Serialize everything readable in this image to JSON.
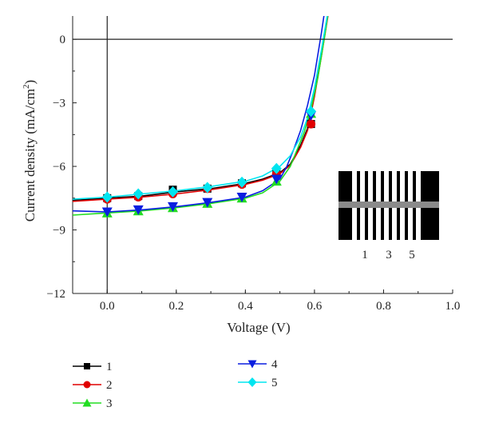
{
  "chart_data": {
    "type": "line",
    "title": "",
    "xlabel": "Voltage (V)",
    "ylabel_main": "Current density (mA/cm",
    "ylabel_sup": "2",
    "ylabel_tail": ")",
    "xlim": [
      -0.1,
      1.0
    ],
    "ylim": [
      -12,
      1.1
    ],
    "xticks": [
      0.0,
      0.2,
      0.4,
      0.6,
      0.8,
      1.0
    ],
    "xtick_labels": [
      "0.0",
      "0.2",
      "0.4",
      "0.6",
      "0.8",
      "1.0"
    ],
    "yticks": [
      0,
      -3,
      -6,
      -9,
      -12
    ],
    "ytick_labels": [
      "0",
      "−3",
      "−6",
      "−9",
      "−12"
    ],
    "grid": false,
    "reference_lines": {
      "x": 0,
      "y": 0
    },
    "legend_position": "bottom",
    "series": [
      {
        "name": "1",
        "color": "#000000",
        "marker": "square",
        "x": [
          -0.1,
          0.0,
          0.1,
          0.2,
          0.3,
          0.4,
          0.45,
          0.5,
          0.53,
          0.56,
          0.58,
          0.6,
          0.62,
          0.64,
          0.655
        ],
        "y": [
          -7.6,
          -7.5,
          -7.4,
          -7.2,
          -7.05,
          -6.8,
          -6.6,
          -6.3,
          -5.9,
          -5.0,
          -4.2,
          -2.5,
          -0.6,
          1.3,
          2.8
        ],
        "marker_x": [
          0.0,
          0.09,
          0.19,
          0.29,
          0.39,
          0.49,
          0.59
        ],
        "marker_y": [
          -7.5,
          -7.4,
          -7.1,
          -7.05,
          -6.8,
          -6.3,
          -4.0
        ]
      },
      {
        "name": "2",
        "color": "#e00000",
        "marker": "circle",
        "x": [
          -0.1,
          0.0,
          0.1,
          0.2,
          0.3,
          0.4,
          0.45,
          0.5,
          0.53,
          0.56,
          0.58,
          0.6,
          0.62,
          0.64,
          0.65
        ],
        "y": [
          -7.65,
          -7.55,
          -7.45,
          -7.3,
          -7.1,
          -6.85,
          -6.65,
          -6.35,
          -5.95,
          -5.1,
          -4.3,
          -2.7,
          -0.8,
          1.2,
          2.5
        ],
        "marker_x": [
          0.0,
          0.09,
          0.19,
          0.29,
          0.39,
          0.49,
          0.59
        ],
        "marker_y": [
          -7.55,
          -7.45,
          -7.3,
          -7.05,
          -6.85,
          -6.35,
          -4.0
        ]
      },
      {
        "name": "3",
        "color": "#22dd22",
        "marker": "triangle-up",
        "x": [
          -0.1,
          0.0,
          0.1,
          0.2,
          0.3,
          0.4,
          0.45,
          0.5,
          0.53,
          0.55,
          0.57,
          0.59,
          0.61,
          0.63,
          0.65
        ],
        "y": [
          -8.3,
          -8.2,
          -8.1,
          -7.95,
          -7.75,
          -7.5,
          -7.25,
          -6.7,
          -6.0,
          -5.2,
          -4.4,
          -3.3,
          -1.8,
          0.2,
          2.4
        ],
        "marker_x": [
          0.0,
          0.09,
          0.19,
          0.29,
          0.39,
          0.49,
          0.59
        ],
        "marker_y": [
          -8.2,
          -8.1,
          -7.95,
          -7.75,
          -7.5,
          -6.7,
          -3.5
        ]
      },
      {
        "name": "4",
        "color": "#0a1ee0",
        "marker": "triangle-down",
        "x": [
          -0.1,
          0.0,
          0.1,
          0.2,
          0.3,
          0.4,
          0.45,
          0.5,
          0.52,
          0.54,
          0.56,
          0.58,
          0.6,
          0.62,
          0.64
        ],
        "y": [
          -8.1,
          -8.15,
          -8.05,
          -7.9,
          -7.7,
          -7.45,
          -7.15,
          -6.6,
          -6.0,
          -5.2,
          -4.3,
          -3.1,
          -1.7,
          0.3,
          2.5
        ],
        "marker_x": [
          0.0,
          0.09,
          0.19,
          0.29,
          0.39,
          0.49,
          0.59
        ],
        "marker_y": [
          -8.15,
          -8.05,
          -7.9,
          -7.7,
          -7.45,
          -6.6,
          -3.6
        ]
      },
      {
        "name": "5",
        "color": "#00e5f0",
        "marker": "diamond",
        "x": [
          -0.1,
          0.0,
          0.1,
          0.2,
          0.3,
          0.4,
          0.45,
          0.5,
          0.53,
          0.56,
          0.58,
          0.6,
          0.62,
          0.64,
          0.655
        ],
        "y": [
          -7.55,
          -7.45,
          -7.3,
          -7.15,
          -6.95,
          -6.7,
          -6.45,
          -6.0,
          -5.5,
          -4.6,
          -3.7,
          -2.3,
          -0.5,
          1.4,
          2.8
        ],
        "marker_x": [
          0.0,
          0.09,
          0.19,
          0.29,
          0.39,
          0.49,
          0.59
        ],
        "marker_y": [
          -7.45,
          -7.3,
          -7.2,
          -7.0,
          -6.75,
          -6.1,
          -3.4
        ]
      }
    ],
    "inset": {
      "labels": [
        "1",
        "3",
        "5"
      ]
    }
  }
}
